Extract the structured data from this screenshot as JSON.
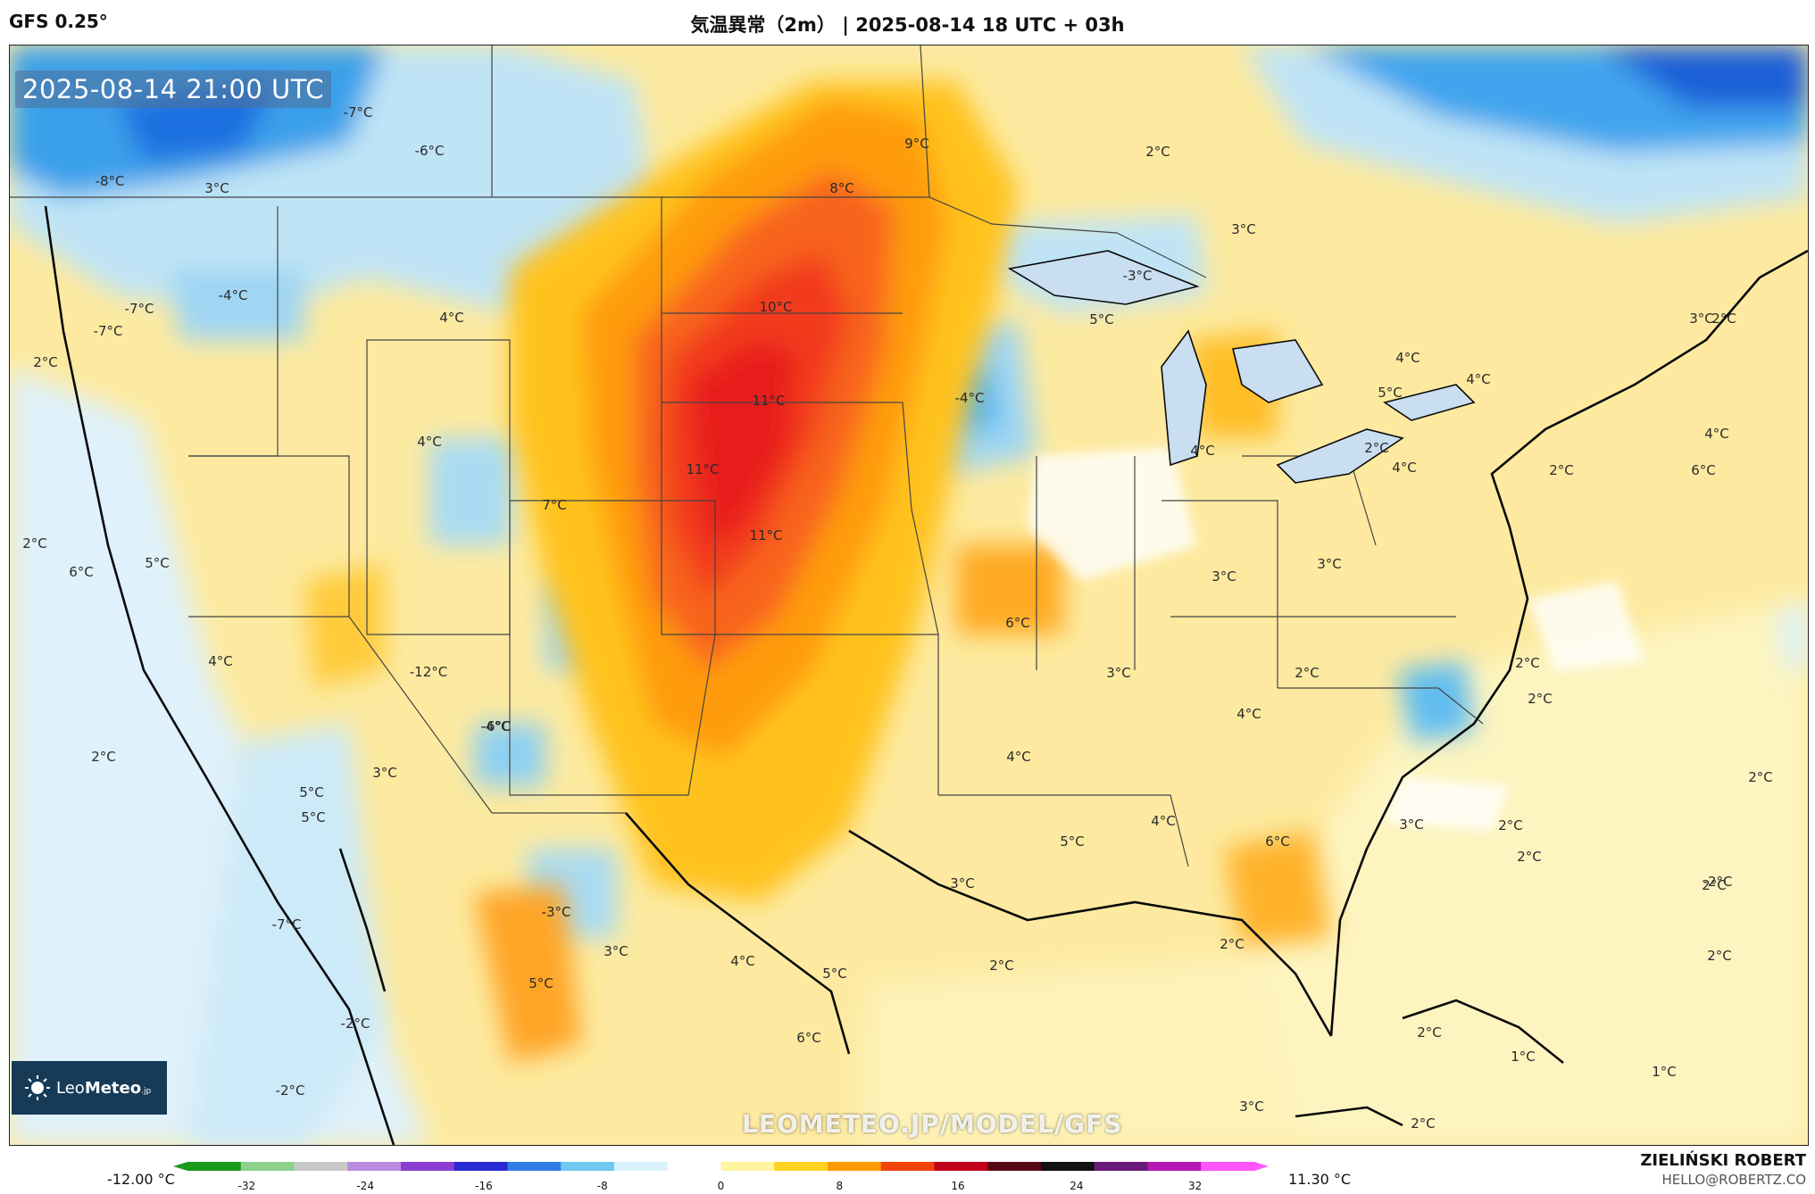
{
  "header": {
    "model": "GFS 0.25°",
    "title": "気温異常（2m） | 2025-08-14 18 UTC + 03h"
  },
  "map": {
    "timestamp": "2025-08-14 21:00 UTC",
    "watermark": "LEOMETEO.JP/MODEL/GFS",
    "logo": {
      "brand_light": "Leo",
      "brand_bold": "Meteo",
      "suffix": ".jp"
    },
    "labels": [
      "-7°C",
      "-6°C",
      "-8°C",
      "3°C",
      "-7°C",
      "2°C",
      "9°C",
      "8°C",
      "-4°C",
      "-7°C",
      "4°C",
      "2°C",
      "10°C",
      "5°C",
      "-4°C",
      "3°C",
      "3°C",
      "4°C",
      "2°C",
      "5°C",
      "11°C",
      "-3°C",
      "4°C",
      "4°C",
      "11°C",
      "4°C",
      "6°C",
      "11°C",
      "7°C",
      "2°C",
      "2°C",
      "6°C",
      "4°C",
      "4°C",
      "3°C",
      "3°C",
      "2°C",
      "5°C",
      "6°C",
      "4°C",
      "3°C",
      "2°C",
      "-12°C",
      "-4°C",
      "2°C",
      "-6°C",
      "4°C",
      "2°C",
      "2°C",
      "3°C",
      "5°C",
      "2°C",
      "4°C",
      "4°C",
      "3°C",
      "2°C",
      "2°C",
      "5°C",
      "6°C",
      "5°C",
      "3°C",
      "2°C",
      "-2°C",
      "-7°C",
      "-3°C",
      "3°C",
      "4°C",
      "5°C",
      "2°C",
      "2°C",
      "2°C",
      "5°C",
      "-2°C",
      "6°C",
      "2°C",
      "1°C",
      "1°C",
      "-2°C",
      "3°C",
      "2°C"
    ]
  },
  "colorbar": {
    "min_label": "-12.00 °C",
    "max_label": "11.30 °C",
    "ticks": [
      "-32",
      "-24",
      "-16",
      "-8",
      "0",
      "8",
      "16",
      "24",
      "32"
    ],
    "colors": [
      "#1a9a1a",
      "#8cd28c",
      "#c8c8c8",
      "#b98be0",
      "#8a3fd1",
      "#2a2bd3",
      "#2f7ee6",
      "#6fc8f0",
      "#d9f2fb",
      "#ffffff",
      "#fff4a0",
      "#ffd21f",
      "#ff9a00",
      "#f1430c",
      "#c1001a",
      "#5a0a14",
      "#111111",
      "#6a1a7a",
      "#b51ab5",
      "#ff55ff"
    ]
  },
  "author": {
    "name": "ZIELIŃSKI ROBERT",
    "email": "HELLO@ROBERTZ.CO"
  }
}
